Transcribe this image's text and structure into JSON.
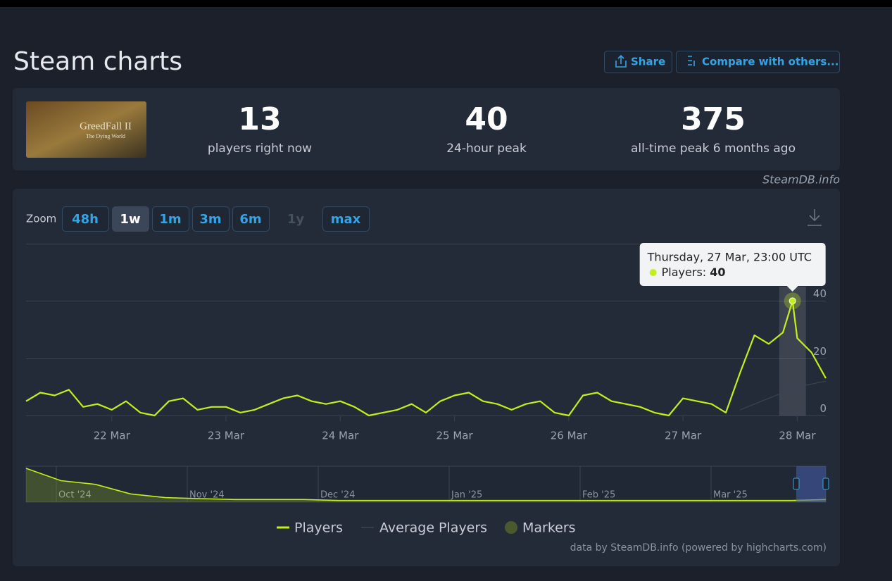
{
  "header": {
    "title": "Steam charts",
    "share": "Share",
    "compare": "Compare with others..."
  },
  "game": {
    "logo": "GreedFall II",
    "subtitle": "The Dying World"
  },
  "stats": [
    {
      "value": 13,
      "label": "players right now"
    },
    {
      "value": 40,
      "label": "24-hour peak"
    },
    {
      "value": 375,
      "label": "all-time peak 6 months ago"
    }
  ],
  "credit": "SteamDB.info",
  "zoom": {
    "label": "Zoom",
    "options": [
      "48h",
      "1w",
      "1m",
      "3m",
      "6m",
      "1y",
      "max"
    ],
    "active": "1w",
    "disabled": [
      "1y"
    ]
  },
  "tooltip": {
    "title": "Thursday, 27 Mar, 23:00 UTC",
    "label": "Players:"
  },
  "chart_data": {
    "type": "line",
    "x": [
      "21 Mar 06:00",
      "21 Mar 09:00",
      "21 Mar 12:00",
      "21 Mar 15:00",
      "21 Mar 18:00",
      "21 Mar 21:00",
      "22 Mar 00:00",
      "22 Mar 03:00",
      "22 Mar 06:00",
      "22 Mar 09:00",
      "22 Mar 12:00",
      "22 Mar 15:00",
      "22 Mar 18:00",
      "22 Mar 21:00",
      "23 Mar 00:00",
      "23 Mar 03:00",
      "23 Mar 06:00",
      "23 Mar 09:00",
      "23 Mar 12:00",
      "23 Mar 15:00",
      "23 Mar 18:00",
      "23 Mar 21:00",
      "24 Mar 00:00",
      "24 Mar 03:00",
      "24 Mar 06:00",
      "24 Mar 09:00",
      "24 Mar 12:00",
      "24 Mar 15:00",
      "24 Mar 18:00",
      "24 Mar 21:00",
      "25 Mar 00:00",
      "25 Mar 03:00",
      "25 Mar 06:00",
      "25 Mar 09:00",
      "25 Mar 12:00",
      "25 Mar 15:00",
      "25 Mar 18:00",
      "25 Mar 21:00",
      "26 Mar 00:00",
      "26 Mar 03:00",
      "26 Mar 06:00",
      "26 Mar 09:00",
      "26 Mar 12:00",
      "26 Mar 15:00",
      "26 Mar 18:00",
      "26 Mar 21:00",
      "27 Mar 00:00",
      "27 Mar 03:00",
      "27 Mar 06:00",
      "27 Mar 09:00",
      "27 Mar 12:00",
      "27 Mar 15:00",
      "27 Mar 18:00",
      "27 Mar 21:00",
      "27 Mar 23:00",
      "28 Mar 00:00",
      "28 Mar 03:00",
      "28 Mar 06:00"
    ],
    "series": [
      {
        "name": "Players",
        "color": "#c3ef1a",
        "values": [
          5,
          8,
          7,
          9,
          3,
          4,
          2,
          5,
          1,
          0,
          5,
          6,
          2,
          3,
          3,
          1,
          2,
          4,
          6,
          7,
          5,
          4,
          5,
          3,
          0,
          1,
          2,
          4,
          1,
          5,
          7,
          8,
          5,
          4,
          2,
          4,
          5,
          1,
          0,
          7,
          8,
          5,
          4,
          3,
          1,
          0,
          6,
          5,
          4,
          1,
          15,
          28,
          25,
          29,
          40,
          27,
          22,
          13
        ]
      },
      {
        "name": "Average Players",
        "color": "#3a4452",
        "values": [
          null,
          null,
          null,
          null,
          null,
          null,
          null,
          null,
          null,
          null,
          null,
          null,
          null,
          null,
          null,
          null,
          null,
          null,
          null,
          null,
          null,
          null,
          null,
          null,
          null,
          null,
          null,
          null,
          null,
          null,
          null,
          null,
          null,
          null,
          null,
          null,
          null,
          null,
          null,
          null,
          null,
          null,
          null,
          null,
          null,
          null,
          null,
          null,
          null,
          null,
          2,
          4,
          6,
          8,
          9,
          10,
          11,
          12
        ]
      }
    ],
    "markers_label": "Markers",
    "xlim": [
      "21 Mar 06:00",
      "28 Mar 06:00"
    ],
    "xticks": [
      "22 Mar",
      "23 Mar",
      "24 Mar",
      "25 Mar",
      "26 Mar",
      "27 Mar",
      "28 Mar"
    ],
    "ylim": [
      0,
      60
    ],
    "yticks": [
      0,
      20,
      40
    ],
    "grid": true,
    "navigator": {
      "labels": [
        "Oct '24",
        "Nov '24",
        "Dec '24",
        "Jan '25",
        "Feb '25",
        "Mar '25"
      ],
      "values": [
        35,
        22,
        18,
        8,
        4,
        3,
        2,
        2,
        2,
        1,
        1,
        1,
        1,
        1,
        1,
        1,
        1,
        1,
        1,
        1,
        1,
        1,
        1,
        2
      ]
    }
  },
  "footer": "data by SteamDB.info (powered by highcharts.com)"
}
